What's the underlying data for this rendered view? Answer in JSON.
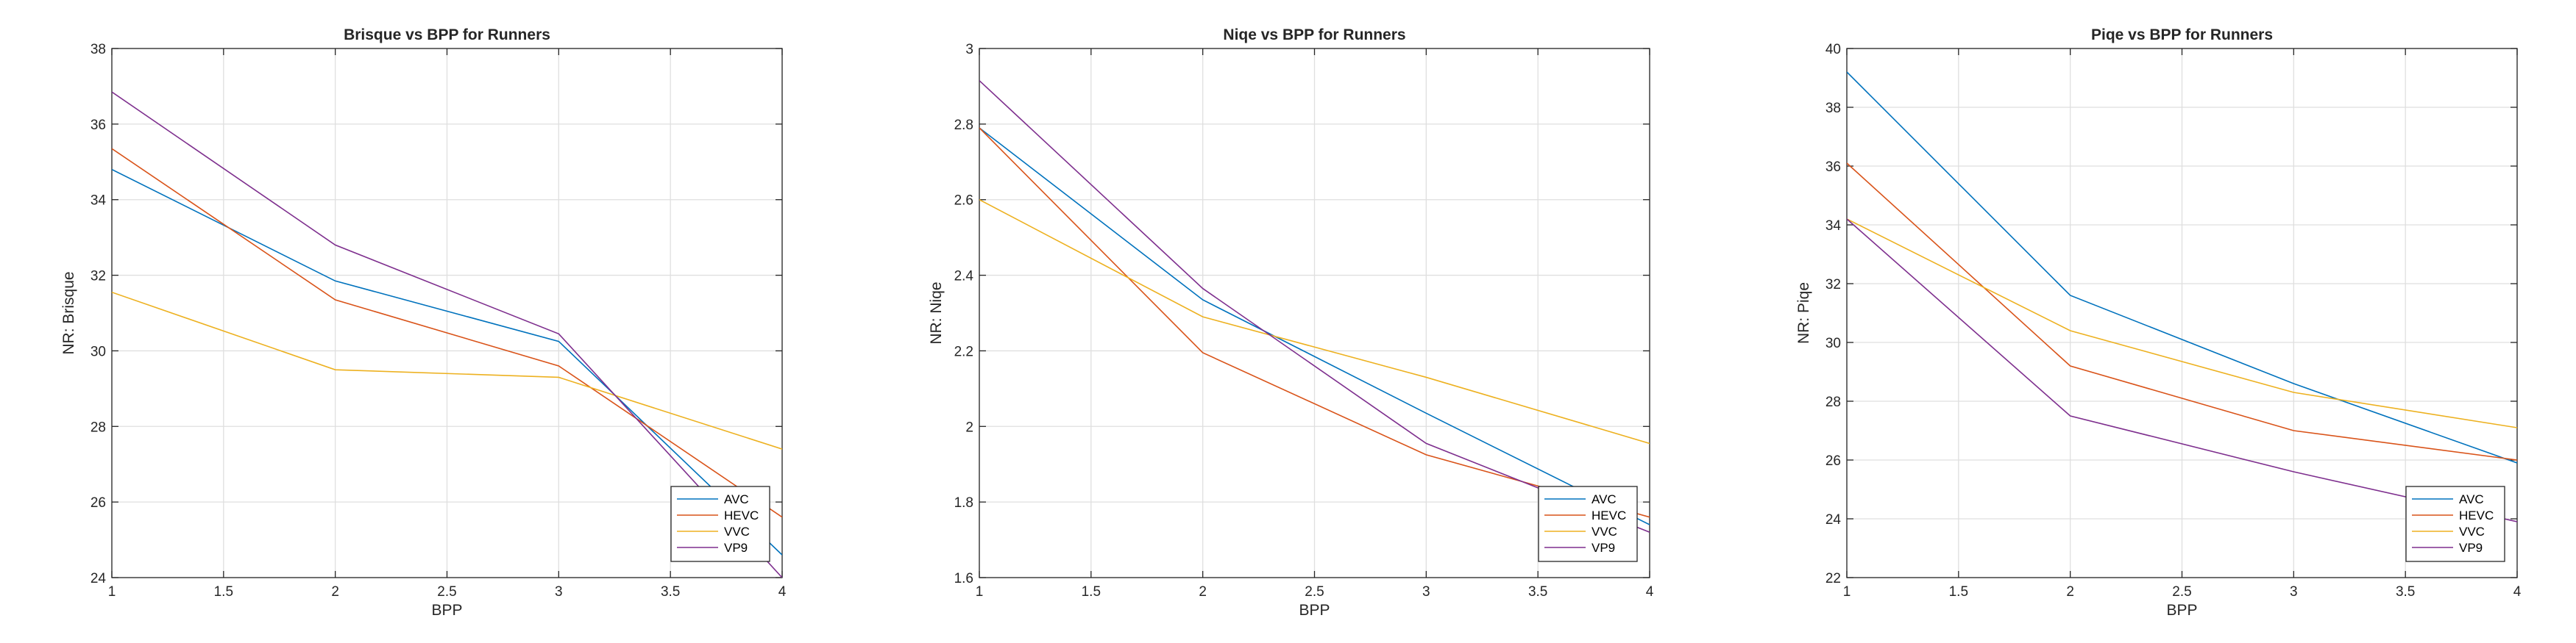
{
  "chart_data": [
    {
      "type": "line",
      "title": "Brisque vs BPP for Runners",
      "xlabel": "BPP",
      "ylabel": "NR: Brisque",
      "xlim": [
        1,
        4
      ],
      "ylim": [
        24,
        38
      ],
      "x_ticks": [
        "1",
        "1.5",
        "2",
        "2.5",
        "3",
        "3.5",
        "4"
      ],
      "y_ticks": [
        "24",
        "26",
        "28",
        "30",
        "32",
        "34",
        "36",
        "38"
      ],
      "grid": true,
      "legend_position": "bottom-right",
      "x": [
        1,
        2,
        3,
        4
      ],
      "series": [
        {
          "name": "AVC",
          "color": "#0072BD",
          "values": [
            34.8,
            31.85,
            30.25,
            24.6
          ]
        },
        {
          "name": "HEVC",
          "color": "#D95319",
          "values": [
            35.35,
            31.35,
            29.6,
            25.6
          ]
        },
        {
          "name": "VVC",
          "color": "#EDB120",
          "values": [
            31.55,
            29.5,
            29.3,
            27.4
          ]
        },
        {
          "name": "VP9",
          "color": "#7E2F8E",
          "values": [
            36.85,
            32.8,
            30.45,
            24.0
          ]
        }
      ]
    },
    {
      "type": "line",
      "title": "Niqe vs BPP for Runners",
      "xlabel": "BPP",
      "ylabel": "NR: Niqe",
      "xlim": [
        1,
        4
      ],
      "ylim": [
        1.6,
        3
      ],
      "x_ticks": [
        "1",
        "1.5",
        "2",
        "2.5",
        "3",
        "3.5",
        "4"
      ],
      "y_ticks": [
        "1.6",
        "1.8",
        "2",
        "2.2",
        "2.4",
        "2.6",
        "2.8",
        "3"
      ],
      "grid": true,
      "legend_position": "bottom-right",
      "x": [
        1,
        2,
        3,
        4
      ],
      "series": [
        {
          "name": "AVC",
          "color": "#0072BD",
          "values": [
            2.79,
            2.335,
            2.035,
            1.74
          ]
        },
        {
          "name": "HEVC",
          "color": "#D95319",
          "values": [
            2.79,
            2.195,
            1.925,
            1.76
          ]
        },
        {
          "name": "VVC",
          "color": "#EDB120",
          "values": [
            2.6,
            2.29,
            2.13,
            1.955
          ]
        },
        {
          "name": "VP9",
          "color": "#7E2F8E",
          "values": [
            2.915,
            2.365,
            1.955,
            1.72
          ]
        }
      ]
    },
    {
      "type": "line",
      "title": "Piqe vs BPP for Runners",
      "xlabel": "BPP",
      "ylabel": "NR: Piqe",
      "xlim": [
        1,
        4
      ],
      "ylim": [
        22,
        40
      ],
      "x_ticks": [
        "1",
        "1.5",
        "2",
        "2.5",
        "3",
        "3.5",
        "4"
      ],
      "y_ticks": [
        "22",
        "24",
        "26",
        "28",
        "30",
        "32",
        "34",
        "36",
        "38",
        "40"
      ],
      "grid": true,
      "legend_position": "bottom-right",
      "x": [
        1,
        2,
        3,
        4
      ],
      "series": [
        {
          "name": "AVC",
          "color": "#0072BD",
          "values": [
            39.2,
            31.6,
            28.6,
            25.9
          ]
        },
        {
          "name": "HEVC",
          "color": "#D95319",
          "values": [
            36.1,
            29.2,
            27.0,
            26.0
          ]
        },
        {
          "name": "VVC",
          "color": "#EDB120",
          "values": [
            34.2,
            30.4,
            28.3,
            27.1
          ]
        },
        {
          "name": "VP9",
          "color": "#7E2F8E",
          "values": [
            34.2,
            27.5,
            25.6,
            23.9
          ]
        }
      ]
    }
  ]
}
